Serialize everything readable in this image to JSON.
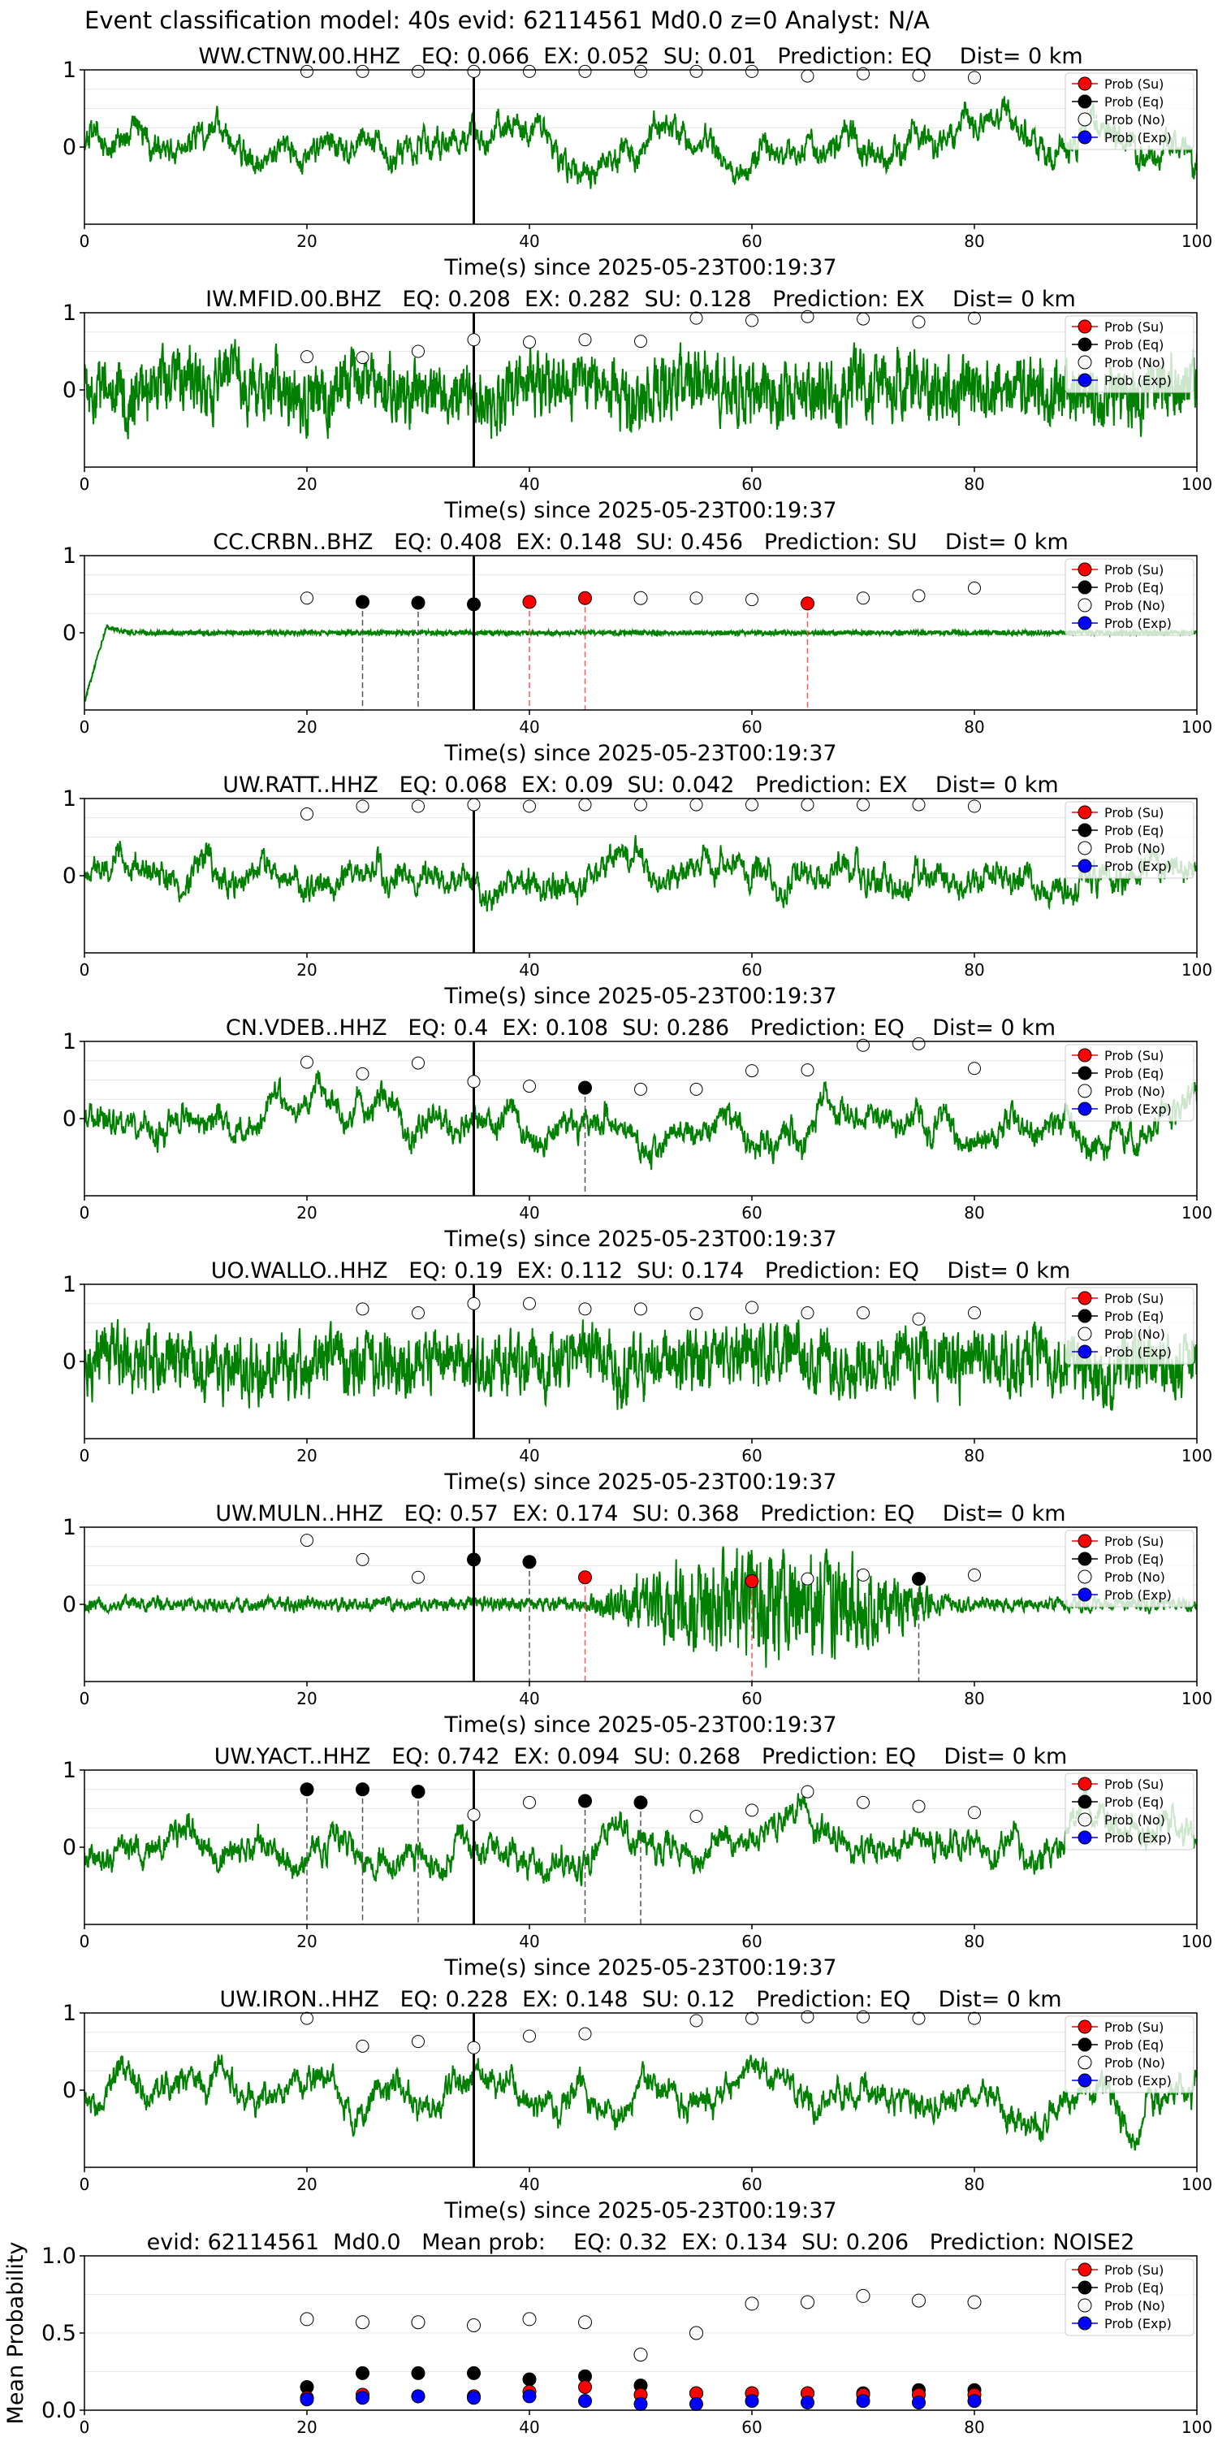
{
  "figure": {
    "suptitle": "Event classification model: 40s evid: 62114561 Md0.0 z=0 Analyst: N/A",
    "trace_color": "#008000",
    "axis_xlabel": "Time(s) since 2025-05-23T00:19:37",
    "xlim": [
      0,
      100
    ],
    "ylim": [
      -1,
      1
    ],
    "y_ticks": [
      "1",
      "0"
    ],
    "x_ticks": [
      "0",
      "20",
      "40",
      "60",
      "80",
      "100"
    ],
    "reference_time": 35,
    "legend": {
      "placement": "upper-right",
      "entries": [
        {
          "label": "Prob (Su)",
          "face": "#ff0000"
        },
        {
          "label": "Prob (Eq)",
          "face": "#000000"
        },
        {
          "label": "Prob (No)",
          "face": "#ffffff"
        },
        {
          "label": "Prob (Exp)",
          "face": "#0000ff"
        }
      ]
    }
  },
  "chart_data": [
    {
      "type": "scatter",
      "title": "WW.CTNW.00.HHZ   EQ: 0.066  EX: 0.052  SU: 0.01   Prediction: EQ    Dist= 0 km",
      "style": "slow",
      "x": [
        20,
        25,
        30,
        35,
        40,
        45,
        50,
        55,
        60,
        65,
        70,
        75,
        80
      ],
      "noise": [
        0.98,
        0.98,
        0.98,
        0.98,
        0.98,
        0.98,
        0.98,
        0.98,
        0.98,
        0.92,
        0.95,
        0.93,
        0.9
      ],
      "markers": []
    },
    {
      "type": "scatter",
      "title": "IW.MFID.00.BHZ   EQ: 0.208  EX: 0.282  SU: 0.128   Prediction: EX    Dist= 0 km",
      "style": "fast",
      "x": [
        20,
        25,
        30,
        35,
        40,
        45,
        50,
        55,
        60,
        65,
        70,
        75,
        80
      ],
      "noise": [
        0.43,
        0.42,
        0.5,
        0.65,
        0.62,
        0.65,
        0.63,
        0.93,
        0.9,
        0.95,
        0.92,
        0.88,
        0.93
      ],
      "markers": []
    },
    {
      "type": "scatter",
      "title": "CC.CRBN..BHZ   EQ: 0.408  EX: 0.148  SU: 0.456   Prediction: SU    Dist= 0 km",
      "style": "flat",
      "x": [
        20,
        55,
        60,
        70,
        75,
        80
      ],
      "noise": [
        0.45,
        0.45,
        0.43,
        0.45,
        0.48,
        0.58
      ],
      "markers": [
        {
          "x": 25,
          "y": 0.4,
          "cls": "eq"
        },
        {
          "x": 30,
          "y": 0.39,
          "cls": "eq"
        },
        {
          "x": 35,
          "y": 0.37,
          "cls": "eq"
        },
        {
          "x": 40,
          "y": 0.4,
          "cls": "su"
        },
        {
          "x": 45,
          "y": 0.45,
          "cls": "su"
        },
        {
          "x": 50,
          "y": 0.45,
          "cls": "no"
        },
        {
          "x": 65,
          "y": 0.38,
          "cls": "su"
        }
      ]
    },
    {
      "type": "scatter",
      "title": "UW.RATT..HHZ   EQ: 0.068  EX: 0.09  SU: 0.042   Prediction: EX    Dist= 0 km",
      "style": "slow",
      "x": [
        20,
        25,
        30,
        35,
        40,
        45,
        50,
        55,
        60,
        65,
        70,
        75,
        80
      ],
      "noise": [
        0.8,
        0.9,
        0.9,
        0.92,
        0.9,
        0.92,
        0.92,
        0.92,
        0.92,
        0.92,
        0.92,
        0.92,
        0.9
      ],
      "markers": []
    },
    {
      "type": "scatter",
      "title": "CN.VDEB..HHZ   EQ: 0.4  EX: 0.108  SU: 0.286   Prediction: EQ    Dist= 0 km",
      "style": "slow",
      "x": [
        20,
        25,
        30,
        35,
        40,
        50,
        55,
        60,
        65,
        70,
        75,
        80
      ],
      "noise": [
        0.73,
        0.58,
        0.72,
        0.48,
        0.42,
        0.38,
        0.38,
        0.62,
        0.63,
        0.95,
        0.97,
        0.65
      ],
      "markers": [
        {
          "x": 45,
          "y": 0.4,
          "cls": "eq"
        }
      ]
    },
    {
      "type": "scatter",
      "title": "UO.WALLO..HHZ   EQ: 0.19  EX: 0.112  SU: 0.174   Prediction: EQ    Dist= 0 km",
      "style": "fast",
      "x": [
        25,
        30,
        35,
        40,
        45,
        50,
        55,
        60,
        65,
        70,
        75,
        80
      ],
      "noise": [
        0.68,
        0.63,
        0.75,
        0.75,
        0.68,
        0.68,
        0.62,
        0.7,
        0.63,
        0.63,
        0.55,
        0.63
      ],
      "markers": []
    },
    {
      "type": "scatter",
      "title": "UW.MULN..HHZ   EQ: 0.57  EX: 0.174  SU: 0.368   Prediction: EQ    Dist= 0 km",
      "style": "burst",
      "x": [
        20,
        25,
        30,
        65,
        70,
        80
      ],
      "noise": [
        0.83,
        0.58,
        0.35,
        0.33,
        0.38,
        0.38
      ],
      "markers": [
        {
          "x": 35,
          "y": 0.58,
          "cls": "eq"
        },
        {
          "x": 40,
          "y": 0.55,
          "cls": "eq"
        },
        {
          "x": 45,
          "y": 0.35,
          "cls": "su"
        },
        {
          "x": 60,
          "y": 0.3,
          "cls": "su"
        },
        {
          "x": 75,
          "y": 0.33,
          "cls": "eq"
        }
      ]
    },
    {
      "type": "scatter",
      "title": "UW.YACT..HHZ   EQ: 0.742  EX: 0.094  SU: 0.268   Prediction: EQ    Dist= 0 km",
      "style": "slow",
      "x": [
        35,
        40,
        55,
        60,
        65,
        70,
        75,
        80
      ],
      "noise": [
        0.42,
        0.58,
        0.4,
        0.48,
        0.72,
        0.58,
        0.53,
        0.45
      ],
      "markers": [
        {
          "x": 20,
          "y": 0.75,
          "cls": "eq"
        },
        {
          "x": 25,
          "y": 0.75,
          "cls": "eq"
        },
        {
          "x": 30,
          "y": 0.72,
          "cls": "eq"
        },
        {
          "x": 45,
          "y": 0.6,
          "cls": "eq"
        },
        {
          "x": 50,
          "y": 0.58,
          "cls": "eq"
        }
      ]
    },
    {
      "type": "scatter",
      "title": "UW.IRON..HHZ   EQ: 0.228  EX: 0.148  SU: 0.12   Prediction: EQ    Dist= 0 km",
      "style": "slow",
      "x": [
        20,
        25,
        30,
        35,
        40,
        45,
        55,
        60,
        65,
        70,
        75,
        80
      ],
      "noise": [
        0.93,
        0.57,
        0.63,
        0.55,
        0.7,
        0.73,
        0.9,
        0.93,
        0.95,
        0.95,
        0.93,
        0.93
      ],
      "markers": []
    },
    {
      "type": "scatter",
      "title": "evid: 62114561  Md0.0   Mean prob:    EQ: 0.32  EX: 0.134  SU: 0.206   Prediction: NOISE2",
      "ylabel": "Mean Probability",
      "ylim": [
        0,
        1
      ],
      "y_ticks": [
        "1.0",
        "0.5",
        "0.0"
      ],
      "x": [
        20,
        25,
        30,
        35,
        40,
        45,
        50,
        55,
        60,
        65,
        70,
        75,
        80
      ],
      "series": [
        {
          "name": "Prob (No)",
          "values": [
            0.59,
            0.57,
            0.57,
            0.55,
            0.59,
            0.57,
            0.36,
            0.5,
            0.69,
            0.7,
            0.74,
            0.71,
            0.7
          ]
        },
        {
          "name": "Prob (Eq)",
          "values": [
            0.15,
            0.24,
            0.24,
            0.24,
            0.2,
            0.22,
            0.16,
            0.11,
            0.11,
            0.11,
            0.11,
            0.13,
            0.13
          ]
        },
        {
          "name": "Prob (Su)",
          "values": [
            0.08,
            0.1,
            0.09,
            0.09,
            0.12,
            0.15,
            0.1,
            0.11,
            0.11,
            0.11,
            0.1,
            0.1,
            0.1
          ]
        },
        {
          "name": "Prob (Exp)",
          "values": [
            0.07,
            0.08,
            0.09,
            0.08,
            0.09,
            0.06,
            0.04,
            0.04,
            0.06,
            0.05,
            0.06,
            0.05,
            0.06
          ]
        }
      ]
    }
  ]
}
